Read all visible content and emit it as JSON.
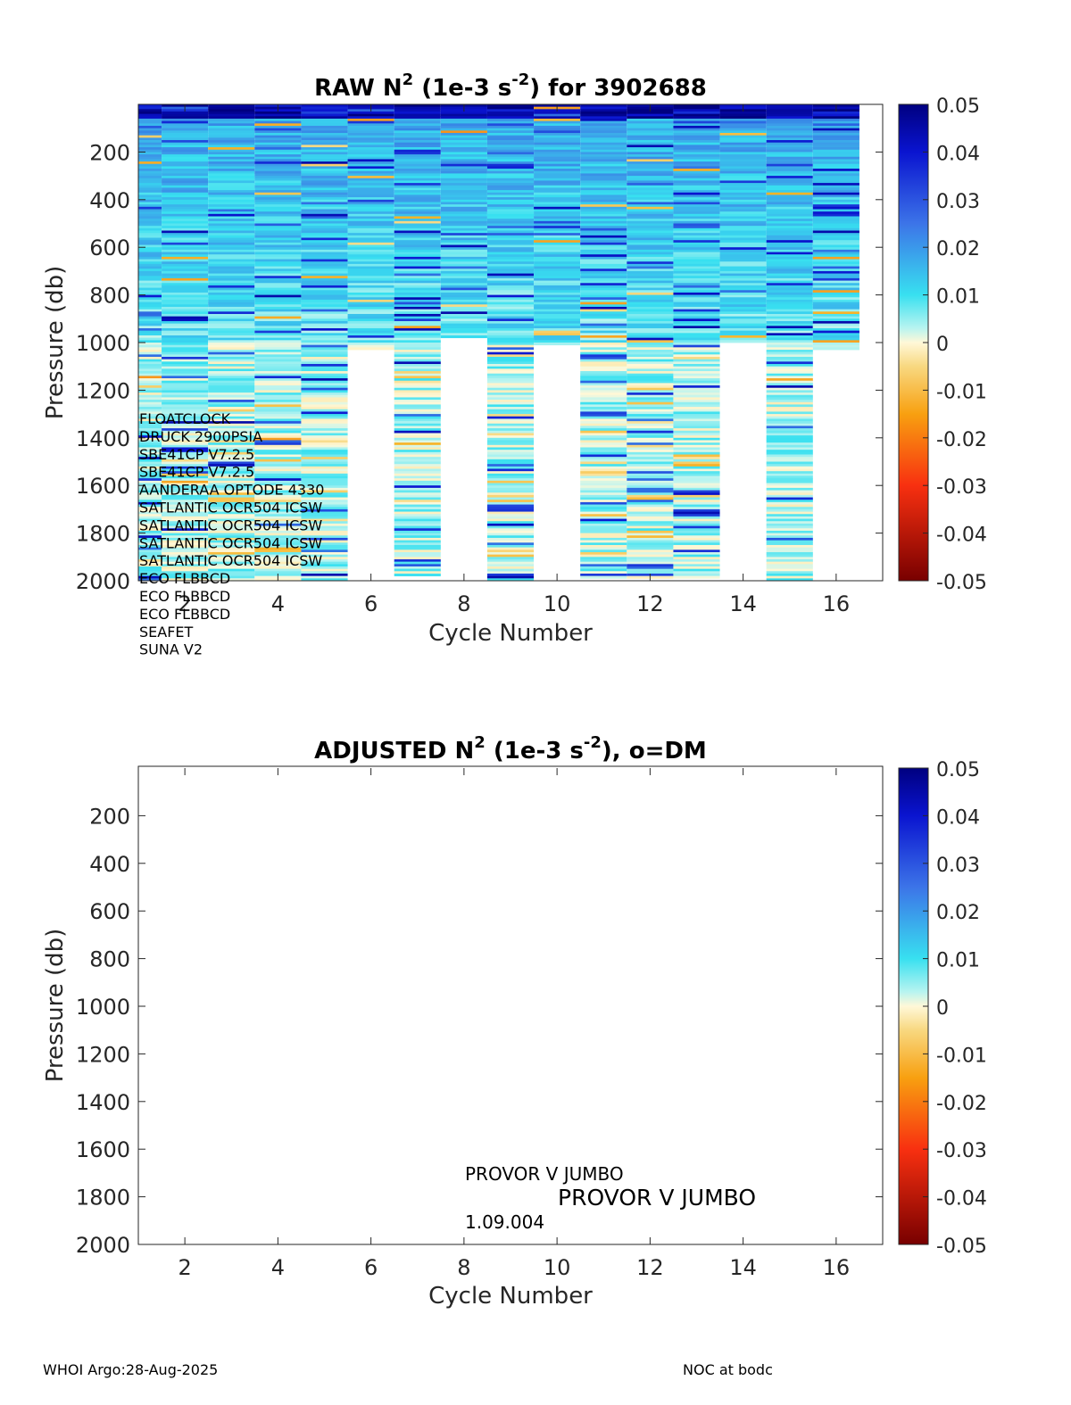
{
  "chart_data": [
    {
      "type": "heatmap",
      "title_prefix": "RAW N",
      "title_sup": "2",
      "title_mid": " (1e-3 s",
      "title_sup2": "-2",
      "title_suffix": ") for 3902688",
      "xlabel": "Cycle Number",
      "ylabel": "Pressure (db)",
      "xlim": [
        1,
        17
      ],
      "ylim": [
        0,
        2000
      ],
      "y_reversed": true,
      "xticks": [
        2,
        4,
        6,
        8,
        10,
        12,
        14,
        16
      ],
      "yticks": [
        200,
        400,
        600,
        800,
        1000,
        1200,
        1400,
        1600,
        1800,
        2000
      ],
      "colorbar": {
        "min": -0.05,
        "max": 0.05,
        "ticks": [
          "0.05",
          "0.04",
          "0.03",
          "0.02",
          "0.01",
          "0",
          "-0.01",
          "-0.02",
          "-0.03",
          "-0.04",
          "-0.05"
        ],
        "colormap": "jet-like diverging (dark red to dark blue, pale at 0)"
      },
      "cycles": [
        {
          "cycle": 1,
          "max_pressure": 2000
        },
        {
          "cycle": 2,
          "max_pressure": 2000
        },
        {
          "cycle": 3,
          "max_pressure": 2000
        },
        {
          "cycle": 4,
          "max_pressure": 2000
        },
        {
          "cycle": 5,
          "max_pressure": 2000
        },
        {
          "cycle": 6,
          "max_pressure": 1030
        },
        {
          "cycle": 7,
          "max_pressure": 1980
        },
        {
          "cycle": 8,
          "max_pressure": 980
        },
        {
          "cycle": 9,
          "max_pressure": 2000
        },
        {
          "cycle": 10,
          "max_pressure": 1010
        },
        {
          "cycle": 11,
          "max_pressure": 1990
        },
        {
          "cycle": 12,
          "max_pressure": 1990
        },
        {
          "cycle": 13,
          "max_pressure": 1990
        },
        {
          "cycle": 14,
          "max_pressure": 1000
        },
        {
          "cycle": 15,
          "max_pressure": 2000
        },
        {
          "cycle": 16,
          "max_pressure": 1030
        }
      ],
      "sensor_labels": [
        "FLOATCLOCK",
        "DRUCK 2900PSIA",
        "SBE41CP V7.2.5",
        "SBE41CP V7.2.5",
        "AANDERAA OPTODE 4330",
        "SATLANTIC OCR504 ICSW",
        "SATLANTIC OCR504 ICSW",
        "SATLANTIC OCR504 ICSW",
        "SATLANTIC OCR504 ICSW",
        "ECO FLBBCD",
        "ECO FLBBCD",
        "ECO FLBBCD",
        "SEAFET",
        "SUNA V2"
      ]
    },
    {
      "type": "heatmap",
      "title_prefix": "ADJUSTED N",
      "title_sup": "2",
      "title_mid": " (1e-3 s",
      "title_sup2": "-2",
      "title_suffix": "), o=DM",
      "xlabel": "Cycle Number",
      "ylabel": "Pressure (db)",
      "xlim": [
        1,
        17
      ],
      "ylim": [
        0,
        2000
      ],
      "y_reversed": true,
      "xticks": [
        2,
        4,
        6,
        8,
        10,
        12,
        14,
        16
      ],
      "yticks": [
        200,
        400,
        600,
        800,
        1000,
        1200,
        1400,
        1600,
        1800,
        2000
      ],
      "colorbar": {
        "min": -0.05,
        "max": 0.05,
        "ticks": [
          "0.05",
          "0.04",
          "0.03",
          "0.02",
          "0.01",
          "0",
          "-0.01",
          "-0.02",
          "-0.03",
          "-0.04",
          "-0.05"
        ]
      },
      "cycles": [],
      "annotations": {
        "platform_small": "PROVOR V JUMBO",
        "platform_large": "PROVOR V JUMBO",
        "firmware": "1.09.004"
      }
    }
  ],
  "footer": {
    "left": "WHOI Argo:28-Aug-2025",
    "right": "NOC at bodc"
  }
}
